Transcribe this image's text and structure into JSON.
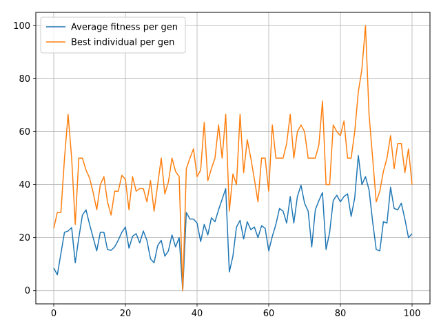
{
  "chart_data": {
    "type": "line",
    "title": "",
    "xlabel": "",
    "ylabel": "",
    "xlim": [
      -5,
      105
    ],
    "ylim": [
      -5,
      105
    ],
    "xticks": [
      0,
      20,
      40,
      60,
      80,
      100
    ],
    "yticks": [
      0,
      20,
      40,
      60,
      80,
      100
    ],
    "grid": true,
    "legend_position": "upper-left",
    "x_start": 0,
    "series": [
      {
        "name": "Average fitness per gen",
        "color": "#1f77b4",
        "values": [
          8.5,
          6,
          14,
          22,
          22.5,
          23.8,
          10.5,
          20,
          28.5,
          30.5,
          25,
          20,
          15,
          22,
          22,
          15.5,
          15.2,
          16.5,
          19,
          22,
          24,
          16,
          20.5,
          21.5,
          18,
          22.5,
          19,
          12,
          10.5,
          17,
          19,
          13,
          15,
          21,
          16.5,
          20,
          0,
          29.5,
          27,
          27,
          25.5,
          18.5,
          25,
          21,
          27.5,
          26,
          30.5,
          34.5,
          38.5,
          7,
          13,
          24,
          26.5,
          19.5,
          26,
          23,
          24,
          20,
          24.5,
          23.5,
          15,
          20.5,
          25,
          31,
          30,
          25.5,
          35.5,
          25.5,
          35.5,
          39.8,
          33,
          30,
          16.5,
          30.5,
          34,
          37,
          15.5,
          22,
          34,
          36,
          33.5,
          35.5,
          36.5,
          28,
          35,
          51,
          40,
          43,
          38,
          26,
          15.5,
          15,
          26,
          25.5,
          39,
          31,
          30.5,
          33,
          27,
          20,
          21.5
        ]
      },
      {
        "name": "Best individual per gen",
        "color": "#ff7f0e",
        "values": [
          23.5,
          29.5,
          29.5,
          50,
          66.5,
          50,
          25,
          50,
          50,
          45.5,
          42.5,
          37,
          30.5,
          40,
          43,
          33.5,
          28.5,
          37.5,
          37.5,
          43.5,
          42,
          30.5,
          43,
          37.5,
          38.5,
          38.5,
          33.5,
          41.5,
          30,
          40,
          50,
          36.5,
          41,
          50,
          45,
          43,
          0,
          46,
          50,
          53.5,
          43,
          45.5,
          63.5,
          41.5,
          46,
          50,
          62.5,
          50,
          66.5,
          30,
          44,
          40,
          66.5,
          44.5,
          57,
          50,
          42,
          33.5,
          50,
          50,
          37.5,
          62.5,
          50,
          50,
          50,
          55.5,
          66.5,
          50,
          60,
          62.5,
          60,
          50,
          50,
          50,
          55,
          71.5,
          40,
          40,
          62.5,
          60,
          58.5,
          64,
          50,
          50,
          60,
          75,
          83.5,
          100,
          66.5,
          50,
          33.5,
          37.5,
          45,
          50,
          58.5,
          46,
          55.5,
          55.5,
          44.5,
          53.5,
          40
        ]
      }
    ]
  }
}
